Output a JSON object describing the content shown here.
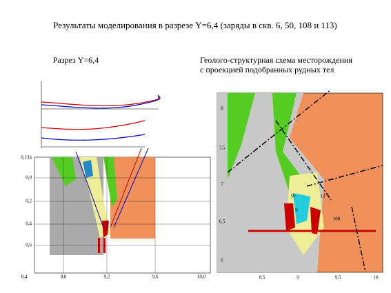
{
  "title": "Результаты моделирования в разрезе Y=6,4 (заряды в скв. 6, 50, 108 и 113)",
  "left_panel": {
    "heading": "Разрез Y=6,4",
    "y_labels": [
      "0,134",
      "0,0",
      "0,2",
      "0,4",
      "0,6"
    ],
    "x_labels": [
      "8,4",
      "8,8",
      "9,2",
      "9,6",
      "10,0"
    ]
  },
  "right_panel": {
    "heading_line1": "Геолого-структурная схема месторождения",
    "heading_line2": "с  проекцией  подобранных рудных тел",
    "y_labels": [
      "8",
      "7,5",
      "7",
      "6,5",
      "6"
    ],
    "x_labels": [
      "8,5",
      "9",
      "9,5",
      "10"
    ],
    "wells": [
      "50",
      "13",
      "6",
      "108"
    ]
  }
}
